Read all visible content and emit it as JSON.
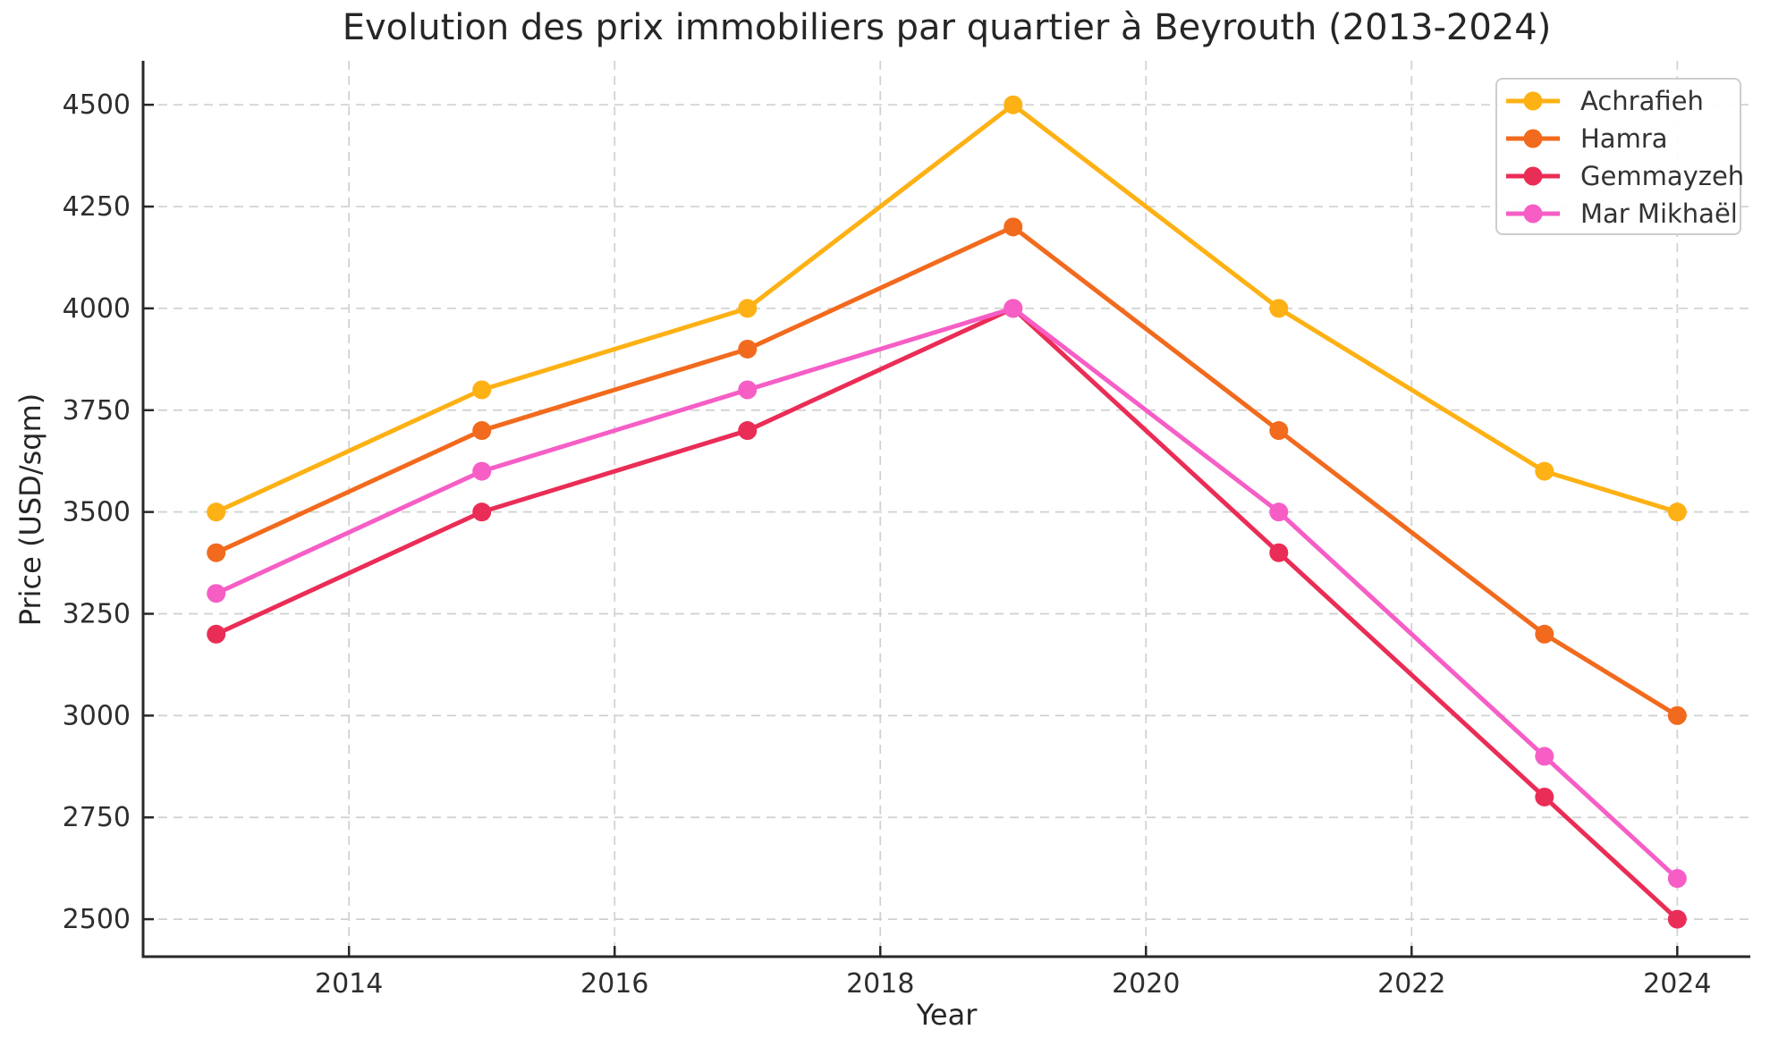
{
  "chart_data": {
    "type": "line",
    "title": "Evolution des prix immobiliers par quartier à Beyrouth (2013-2024)",
    "xlabel": "Year",
    "ylabel": "Price (USD/sqm)",
    "x": [
      2013,
      2015,
      2017,
      2019,
      2021,
      2023,
      2024
    ],
    "series": [
      {
        "name": "Achrafieh",
        "color": "#FDB114",
        "values": [
          3500,
          3800,
          4000,
          4500,
          4000,
          3600,
          3500
        ]
      },
      {
        "name": "Hamra",
        "color": "#F26A1D",
        "values": [
          3400,
          3700,
          3900,
          4200,
          3700,
          3200,
          3000
        ]
      },
      {
        "name": "Gemmayzeh",
        "color": "#EA2D56",
        "values": [
          3200,
          3500,
          3700,
          4000,
          3400,
          2800,
          2500
        ]
      },
      {
        "name": "Mar Mikhaël",
        "color": "#F65EC6",
        "values": [
          3300,
          3600,
          3800,
          4000,
          3500,
          2900,
          2600
        ]
      }
    ],
    "xticks": [
      2014,
      2016,
      2018,
      2020,
      2022,
      2024
    ],
    "yticks": [
      2500,
      2750,
      3000,
      3250,
      3500,
      3750,
      4000,
      4250,
      4500
    ],
    "xlim": [
      2012.45,
      2024.55
    ],
    "ylim": [
      2408,
      4608
    ],
    "grid": true,
    "grid_style": "dashed",
    "legend_position": "top-right",
    "marker": "circle"
  },
  "colors": {
    "text": "#262626",
    "tick_text": "#2e2e2e",
    "grid": "#d0d0d0",
    "spine": "#282828",
    "legend_border": "#cdcdcd",
    "background": "#ffffff"
  }
}
